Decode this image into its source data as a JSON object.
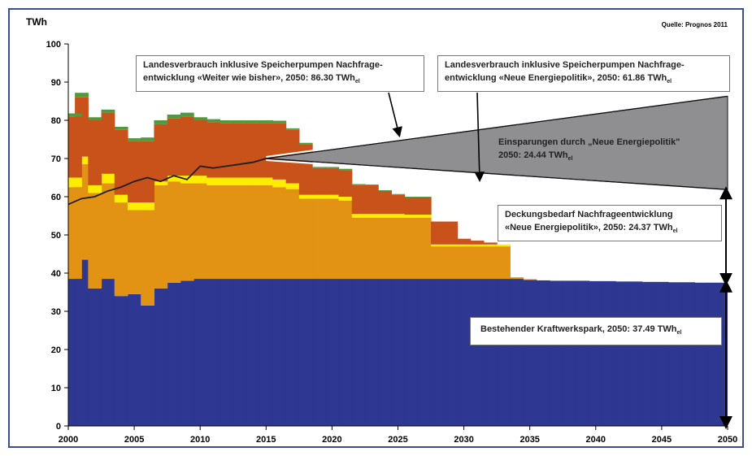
{
  "unit_label": "TWh",
  "source": "Quelle: Prognos 2011",
  "callouts": {
    "weiter": {
      "line1": "Landesverbrauch inklusive Speicherpumpen Nachfrage-",
      "line2_main": "entwicklung «Weiter wie bisher», 2050: 86.30 TWh",
      "line2_sub": "el"
    },
    "neue": {
      "line1": "Landesverbrauch inklusive Speicherpumpen Nachfrage-",
      "line2_main": "entwicklung «Neue Energiepolitik», 2050: 61.86 TWh",
      "line2_sub": "el"
    },
    "einsparungen": {
      "line1": "Einsparungen durch „Neue Energiepolitik\"",
      "line2_main": "2050: 24.44 TWh",
      "line2_sub": "el"
    },
    "deckung": {
      "line1": "Deckungsbedarf Nachfrageentwicklung",
      "line2_main": "«Neue Energiepolitik», 2050: 24.37 TWh",
      "line2_sub": "el"
    },
    "bestehend": {
      "line1_main": "Bestehender Kraftwerkspark, 2050: 37.49 TWh",
      "line1_sub": "el"
    }
  },
  "chart_data": {
    "type": "area",
    "title": "",
    "xlabel": "",
    "ylabel": "TWh",
    "xlim": [
      2000,
      2050
    ],
    "ylim": [
      0,
      100
    ],
    "x_ticks": [
      2000,
      2005,
      2010,
      2015,
      2020,
      2025,
      2030,
      2035,
      2040,
      2045,
      2050
    ],
    "y_ticks": [
      0,
      10,
      20,
      30,
      40,
      50,
      60,
      70,
      80,
      90,
      100
    ],
    "years": [
      2000,
      2001,
      2002,
      2003,
      2004,
      2005,
      2006,
      2007,
      2008,
      2009,
      2010,
      2011,
      2012,
      2013,
      2014,
      2015,
      2016,
      2017,
      2018,
      2019,
      2020,
      2021,
      2022,
      2023,
      2024,
      2025,
      2026,
      2027,
      2028,
      2029,
      2030,
      2031,
      2032,
      2033,
      2034,
      2035,
      2036,
      2037,
      2038,
      2039,
      2040,
      2041,
      2042,
      2043,
      2044,
      2045,
      2046,
      2047,
      2048,
      2049,
      2050
    ],
    "stack_series": [
      {
        "name": "",
        "color": "#2e3791",
        "values": [
          38.5,
          43.5,
          36,
          38.5,
          34,
          34.5,
          31.5,
          36,
          37.5,
          38,
          38.5,
          38.5,
          38.5,
          38.5,
          38.5,
          38.5,
          38.5,
          38.5,
          38.5,
          38.5,
          38.5,
          38.5,
          38.5,
          38.5,
          38.5,
          38.5,
          38.5,
          38.5,
          38.5,
          38.5,
          38.5,
          38.5,
          38.5,
          38.5,
          38.5,
          38.2,
          38.1,
          38,
          38,
          38,
          37.9,
          37.9,
          37.8,
          37.8,
          37.7,
          37.7,
          37.6,
          37.6,
          37.5,
          37.5,
          37.49
        ]
      },
      {
        "name": "",
        "color": "#e39313",
        "values": [
          24,
          25,
          25,
          25,
          24.5,
          22,
          25,
          27,
          26.5,
          25.5,
          25,
          24.5,
          24.5,
          24.5,
          24.5,
          24.5,
          24,
          23.5,
          21,
          21,
          21,
          20.5,
          16,
          16,
          16,
          16,
          16,
          16,
          8.5,
          8.5,
          8.5,
          8.5,
          8.5,
          8.5,
          0.4,
          0.2,
          0,
          0,
          0,
          0,
          0,
          0,
          0,
          0,
          0,
          0,
          0,
          0,
          0,
          0,
          0
        ]
      },
      {
        "name": "",
        "color": "#ffed00",
        "values": [
          2.5,
          2,
          2,
          2.5,
          2,
          2,
          2,
          1,
          1.5,
          2,
          2,
          2,
          2,
          2,
          2,
          2,
          2,
          1.5,
          1,
          1,
          1,
          1,
          1,
          1,
          1,
          1,
          0.8,
          0.8,
          0.5,
          0.5,
          0.5,
          0.5,
          0.5,
          0.5,
          0,
          0,
          0,
          0,
          0,
          0,
          0,
          0,
          0,
          0,
          0,
          0,
          0,
          0,
          0,
          0,
          0
        ]
      },
      {
        "name": "",
        "color": "#c8521a",
        "values": [
          16,
          15.5,
          17,
          16,
          17,
          16,
          16,
          15,
          15,
          15.5,
          14.5,
          14.5,
          14.3,
          14.3,
          14.3,
          14.3,
          14.8,
          14,
          13.3,
          7,
          7,
          7,
          7.5,
          7.5,
          6,
          5,
          4.5,
          4.5,
          6,
          6,
          1.5,
          1,
          0.5,
          0,
          0,
          0,
          0,
          0,
          0,
          0,
          0,
          0,
          0,
          0,
          0,
          0,
          0,
          0,
          0,
          0,
          0
        ]
      },
      {
        "name": "",
        "color": "#4e9a3e",
        "values": [
          0.8,
          1.2,
          0.8,
          0.8,
          0.8,
          0.8,
          1,
          1,
          1,
          1,
          0.8,
          0.8,
          0.7,
          0.7,
          0.7,
          0.7,
          0.6,
          0.4,
          0.3,
          0.3,
          0.3,
          0.3,
          0.3,
          0.2,
          0.2,
          0.2,
          0.2,
          0.2,
          0,
          0,
          0,
          0,
          0,
          0,
          0,
          0,
          0,
          0,
          0,
          0,
          0,
          0,
          0,
          0,
          0,
          0,
          0,
          0,
          0,
          0,
          0
        ]
      }
    ],
    "demand_line": {
      "name": "",
      "color": "#1e1e1e",
      "x": [
        2000,
        2001,
        2002,
        2003,
        2004,
        2005,
        2006,
        2007,
        2008,
        2009,
        2010,
        2011,
        2012,
        2013,
        2014,
        2015
      ],
      "y": [
        58,
        59.5,
        60,
        61.5,
        62.5,
        64,
        65,
        64,
        65.5,
        64.5,
        68,
        67.5,
        68,
        68.5,
        69,
        70
      ]
    },
    "scenario_weiter": {
      "name": "",
      "x": [
        2015,
        2050
      ],
      "y": [
        70,
        86.3
      ]
    },
    "scenario_neue": {
      "name": "",
      "x": [
        2015,
        2050
      ],
      "y": [
        70,
        61.86
      ]
    },
    "savings_2050": 24.44,
    "coverage_gap_2050": 24.37,
    "existing_plants_2050": 37.49,
    "grid": false,
    "legend": "none"
  }
}
